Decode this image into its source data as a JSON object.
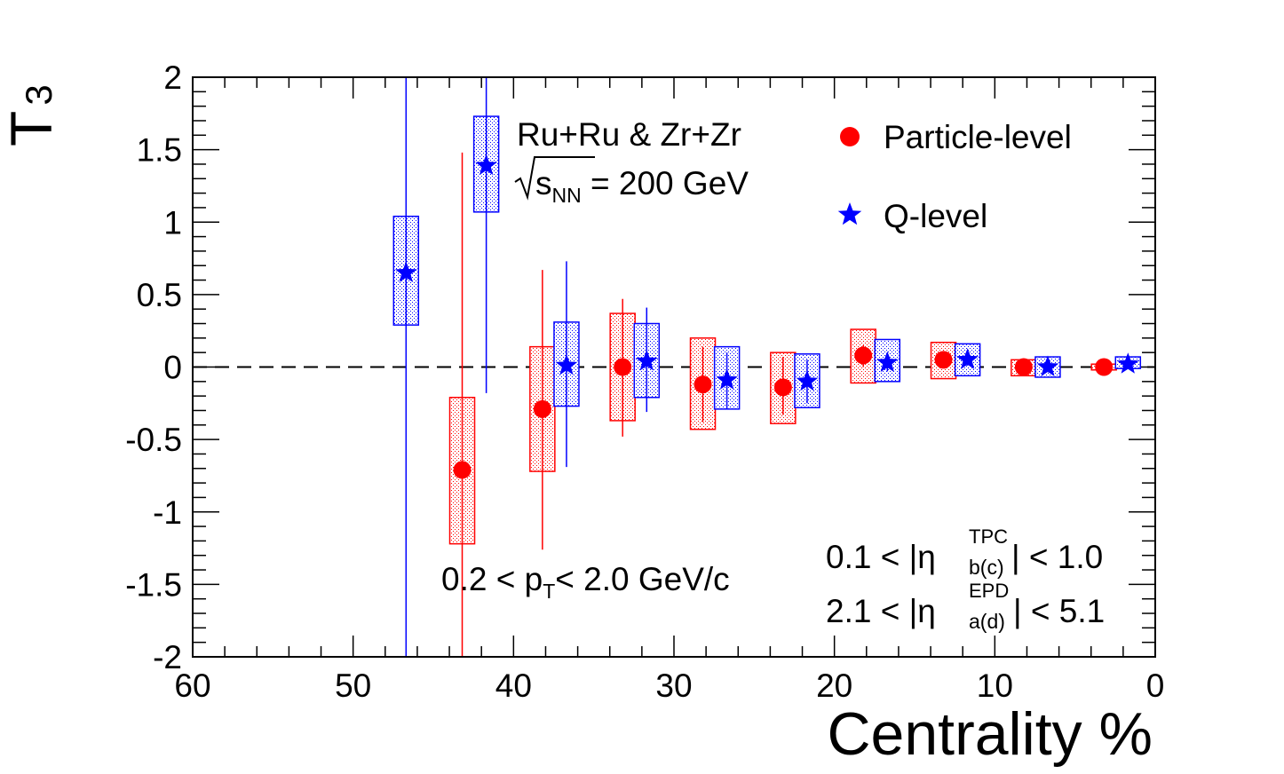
{
  "chart_data": {
    "type": "scatter",
    "xlabel": "Centrality %",
    "ylabel_main": "T",
    "ylabel_sub": "3",
    "xlim": [
      60,
      0
    ],
    "ylim": [
      -2,
      2
    ],
    "x_reversed": true,
    "x_ticks": [
      "60",
      "50",
      "40",
      "30",
      "20",
      "10",
      "0"
    ],
    "y_ticks": [
      "2",
      "1.5",
      "1",
      "0.5",
      "0",
      "-0.5",
      "-1",
      "-1.5",
      "-2"
    ],
    "reference_line": {
      "y": 0,
      "style": "dashed"
    },
    "series": [
      {
        "name": "Particle-level",
        "color": "#ff0000",
        "marker": "circle",
        "points": [
          {
            "x": 43.2,
            "y": -0.71,
            "stat_lo": -2.0,
            "stat_hi": 1.48,
            "sys_lo": -1.22,
            "sys_hi": -0.21
          },
          {
            "x": 38.2,
            "y": -0.29,
            "stat_lo": -1.26,
            "stat_hi": 0.67,
            "sys_lo": -0.72,
            "sys_hi": 0.14
          },
          {
            "x": 33.2,
            "y": 0.0,
            "stat_lo": -0.48,
            "stat_hi": 0.47,
            "sys_lo": -0.37,
            "sys_hi": 0.37
          },
          {
            "x": 28.2,
            "y": -0.12,
            "stat_lo": -0.38,
            "stat_hi": 0.14,
            "sys_lo": -0.43,
            "sys_hi": 0.2
          },
          {
            "x": 23.2,
            "y": -0.14,
            "stat_lo": -0.33,
            "stat_hi": 0.07,
            "sys_lo": -0.39,
            "sys_hi": 0.1
          },
          {
            "x": 18.2,
            "y": 0.08,
            "stat_lo": 0.0,
            "stat_hi": 0.15,
            "sys_lo": -0.11,
            "sys_hi": 0.26
          },
          {
            "x": 13.2,
            "y": 0.05,
            "stat_lo": 0.01,
            "stat_hi": 0.09,
            "sys_lo": -0.08,
            "sys_hi": 0.17
          },
          {
            "x": 8.2,
            "y": 0.0,
            "stat_lo": -0.02,
            "stat_hi": 0.02,
            "sys_lo": -0.06,
            "sys_hi": 0.05
          },
          {
            "x": 3.2,
            "y": 0.0,
            "stat_lo": -0.01,
            "stat_hi": 0.01,
            "sys_lo": -0.02,
            "sys_hi": 0.02
          }
        ]
      },
      {
        "name": "Q-level",
        "color": "#0000ff",
        "marker": "star",
        "points": [
          {
            "x": 46.7,
            "y": 0.65,
            "stat_lo": -2.0,
            "stat_hi": 2.0,
            "sys_lo": 0.29,
            "sys_hi": 1.04
          },
          {
            "x": 41.7,
            "y": 1.39,
            "stat_lo": -0.18,
            "stat_hi": 2.0,
            "sys_lo": 1.07,
            "sys_hi": 1.73
          },
          {
            "x": 36.7,
            "y": 0.01,
            "stat_lo": -0.69,
            "stat_hi": 0.73,
            "sys_lo": -0.27,
            "sys_hi": 0.31
          },
          {
            "x": 31.7,
            "y": 0.04,
            "stat_lo": -0.31,
            "stat_hi": 0.41,
            "sys_lo": -0.21,
            "sys_hi": 0.3
          },
          {
            "x": 26.7,
            "y": -0.09,
            "stat_lo": -0.29,
            "stat_hi": 0.1,
            "sys_lo": -0.29,
            "sys_hi": 0.14
          },
          {
            "x": 21.7,
            "y": -0.1,
            "stat_lo": -0.25,
            "stat_hi": 0.05,
            "sys_lo": -0.28,
            "sys_hi": 0.09
          },
          {
            "x": 16.7,
            "y": 0.03,
            "stat_lo": -0.03,
            "stat_hi": 0.09,
            "sys_lo": -0.1,
            "sys_hi": 0.19
          },
          {
            "x": 11.7,
            "y": 0.05,
            "stat_lo": 0.01,
            "stat_hi": 0.09,
            "sys_lo": -0.06,
            "sys_hi": 0.16
          },
          {
            "x": 6.7,
            "y": 0.0,
            "stat_lo": -0.02,
            "stat_hi": 0.02,
            "sys_lo": -0.07,
            "sys_hi": 0.07
          },
          {
            "x": 1.7,
            "y": 0.02,
            "stat_lo": 0.0,
            "stat_hi": 0.04,
            "sys_lo": -0.01,
            "sys_hi": 0.07
          }
        ]
      }
    ],
    "legend_placement": "top-right",
    "annotations": {
      "system": "Ru+Ru & Zr+Zr",
      "energy_sqrt": "s",
      "energy_sub": "NN",
      "energy_value": " = 200 GeV",
      "pt_prefix": "0.2 < p",
      "pt_sub": "T",
      "pt_suffix": "< 2.0 GeV/c",
      "eta1_prefix": "0.1 < |η",
      "eta1_sup": "TPC",
      "eta1_sub": "b(c)",
      "eta1_suffix": "| < 1.0",
      "eta2_prefix": "2.1 < |η",
      "eta2_sup": "EPD",
      "eta2_sub": "a(d)",
      "eta2_suffix": "| < 5.1"
    }
  }
}
